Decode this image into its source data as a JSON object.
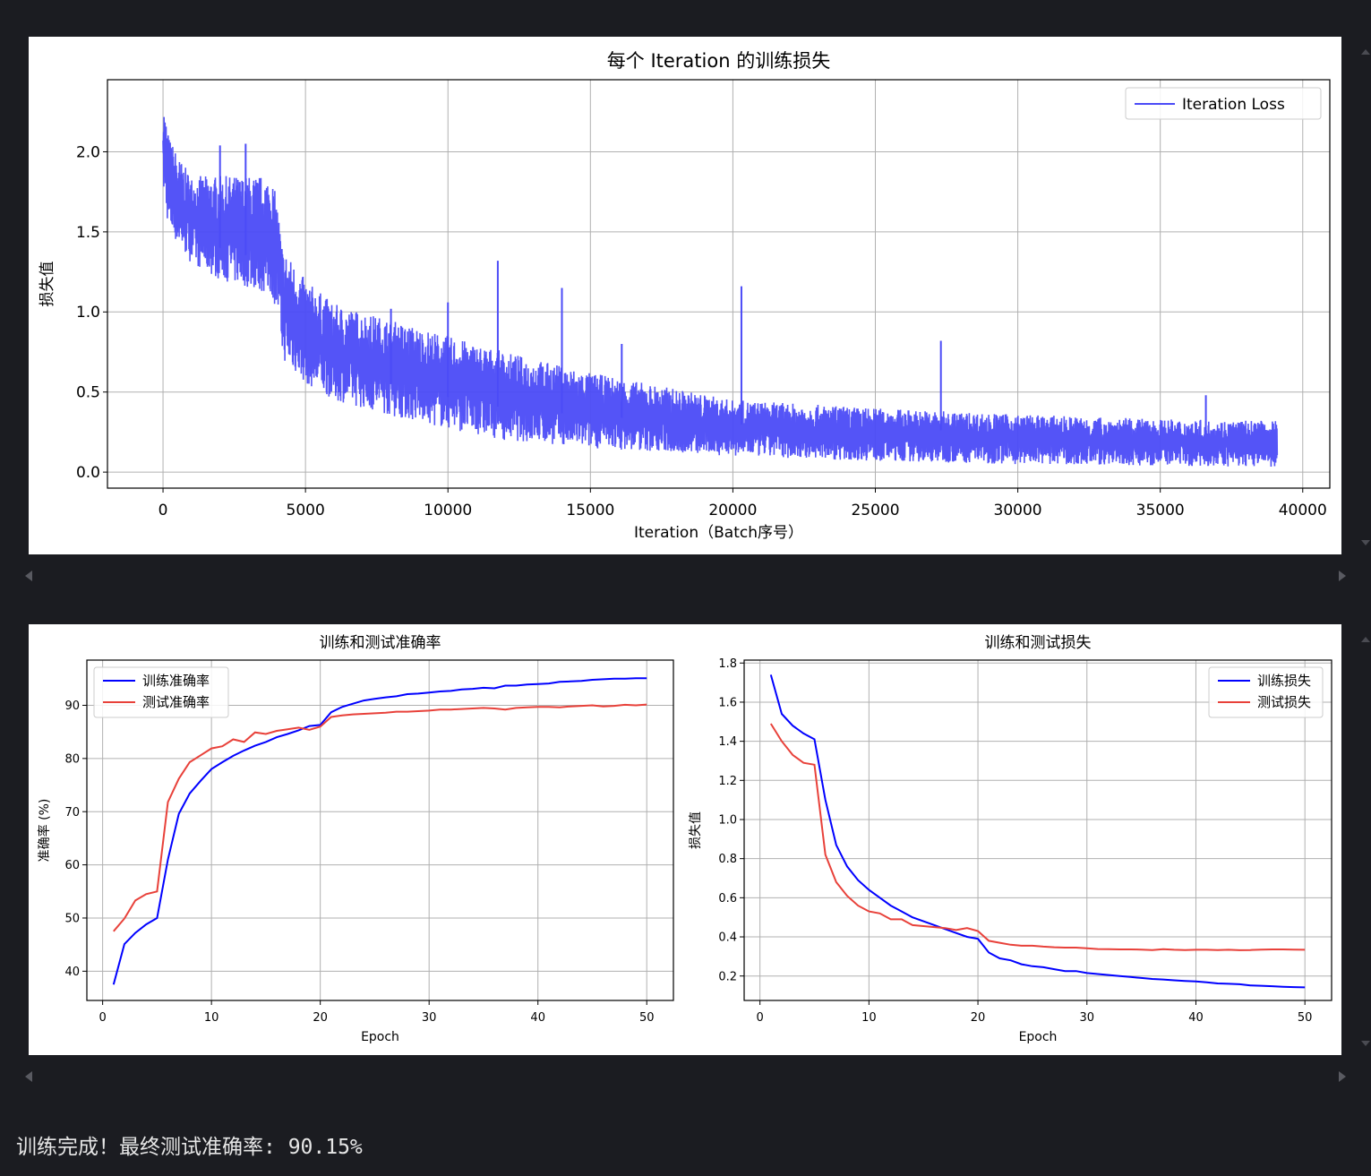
{
  "output": {
    "final_message": "训练完成！最终测试准确率: 90.15%"
  },
  "colors": {
    "background": "#1b1c21",
    "panel": "#ffffff",
    "blue": "#0000ff",
    "red": "#e8413a",
    "grid": "#b0b0b0",
    "iteration_line": "#4b4bf7"
  },
  "icons": [
    "scroll-left-arrow-icon",
    "scroll-right-arrow-icon"
  ],
  "chart_data": [
    {
      "type": "line",
      "title": "每个 Iteration 的训练损失",
      "xlabel": "Iteration（Batch序号）",
      "ylabel": "损失值",
      "xlim": [
        -1950,
        40950
      ],
      "ylim": [
        -0.1,
        2.45
      ],
      "xticks": [
        0,
        5000,
        10000,
        15000,
        20000,
        25000,
        30000,
        35000,
        40000
      ],
      "yticks": [
        0.0,
        0.5,
        1.0,
        1.5,
        2.0
      ],
      "ytick_labels": [
        "0.0",
        "0.5",
        "1.0",
        "1.5",
        "2.0"
      ],
      "grid": true,
      "legend": "upper right",
      "series": [
        {
          "name": "Iteration Loss",
          "n_points": 39100,
          "envelope_x": [
            0,
            200,
            600,
            1000,
            2000,
            3000,
            3800,
            4000,
            4200,
            5000,
            6000,
            8000,
            10000,
            12000,
            15000,
            18000,
            20000,
            25000,
            30000,
            35000,
            39100
          ],
          "envelope_upper": [
            2.33,
            2.1,
            1.95,
            1.85,
            1.85,
            1.85,
            1.85,
            1.7,
            1.4,
            1.2,
            1.05,
            0.95,
            0.85,
            0.75,
            0.62,
            0.52,
            0.45,
            0.4,
            0.36,
            0.33,
            0.32
          ],
          "envelope_lower": [
            1.75,
            1.5,
            1.4,
            1.3,
            1.2,
            1.15,
            1.1,
            1.0,
            0.7,
            0.55,
            0.45,
            0.35,
            0.27,
            0.2,
            0.15,
            0.12,
            0.1,
            0.07,
            0.05,
            0.04,
            0.03
          ],
          "spikes": [
            [
              11750,
              1.32
            ],
            [
              14000,
              1.15
            ],
            [
              20300,
              1.16
            ],
            [
              27300,
              0.82
            ],
            [
              10000,
              1.06
            ],
            [
              8000,
              1.02
            ],
            [
              2000,
              2.04
            ],
            [
              2900,
              2.05
            ],
            [
              36600,
              0.48
            ],
            [
              16100,
              0.8
            ]
          ]
        }
      ]
    },
    {
      "type": "line",
      "title": "训练和测试准确率",
      "xlabel": "Epoch",
      "ylabel": "准确率 (%)",
      "xlim": [
        -1.45,
        52.45
      ],
      "ylim": [
        34.5,
        98.5
      ],
      "xticks": [
        0,
        10,
        20,
        30,
        40,
        50
      ],
      "yticks": [
        40,
        50,
        60,
        70,
        80,
        90
      ],
      "grid": true,
      "legend": "upper left",
      "x": [
        1,
        2,
        3,
        4,
        5,
        6,
        7,
        8,
        9,
        10,
        11,
        12,
        13,
        14,
        15,
        16,
        17,
        18,
        19,
        20,
        21,
        22,
        23,
        24,
        25,
        26,
        27,
        28,
        29,
        30,
        31,
        32,
        33,
        34,
        35,
        36,
        37,
        38,
        39,
        40,
        41,
        42,
        43,
        44,
        45,
        46,
        47,
        48,
        49,
        50
      ],
      "series": [
        {
          "name": "训练准确率",
          "values": [
            37.5,
            45.1,
            47.2,
            48.8,
            50.0,
            61.0,
            69.6,
            73.4,
            75.8,
            78.0,
            79.3,
            80.5,
            81.5,
            82.4,
            83.1,
            84.0,
            84.6,
            85.3,
            86.1,
            86.3,
            88.7,
            89.7,
            90.3,
            90.9,
            91.2,
            91.5,
            91.7,
            92.1,
            92.2,
            92.4,
            92.6,
            92.7,
            93.0,
            93.1,
            93.3,
            93.2,
            93.7,
            93.7,
            93.9,
            94.0,
            94.1,
            94.4,
            94.5,
            94.6,
            94.8,
            94.9,
            95.0,
            95.0,
            95.1,
            95.1
          ]
        },
        {
          "name": "测试准确率",
          "values": [
            47.5,
            49.9,
            53.3,
            54.5,
            55.0,
            71.8,
            76.2,
            79.3,
            80.6,
            81.9,
            82.3,
            83.6,
            83.1,
            84.9,
            84.6,
            85.2,
            85.5,
            85.8,
            85.4,
            86.0,
            87.8,
            88.1,
            88.3,
            88.4,
            88.5,
            88.6,
            88.8,
            88.8,
            88.9,
            89.0,
            89.2,
            89.2,
            89.3,
            89.4,
            89.5,
            89.4,
            89.2,
            89.5,
            89.6,
            89.7,
            89.7,
            89.6,
            89.8,
            89.9,
            90.0,
            89.8,
            89.9,
            90.1,
            90.0,
            90.15
          ]
        }
      ]
    },
    {
      "type": "line",
      "title": "训练和测试损失",
      "xlabel": "Epoch",
      "ylabel": "损失值",
      "xlim": [
        -1.45,
        52.45
      ],
      "ylim": [
        0.075,
        1.815
      ],
      "xticks": [
        0,
        10,
        20,
        30,
        40,
        50
      ],
      "yticks": [
        0.2,
        0.4,
        0.6,
        0.8,
        1.0,
        1.2,
        1.4,
        1.6,
        1.8
      ],
      "ytick_labels": [
        "0.2",
        "0.4",
        "0.6",
        "0.8",
        "1.0",
        "1.2",
        "1.4",
        "1.6",
        "1.8"
      ],
      "grid": true,
      "legend": "upper right",
      "x": [
        1,
        2,
        3,
        4,
        5,
        6,
        7,
        8,
        9,
        10,
        11,
        12,
        13,
        14,
        15,
        16,
        17,
        18,
        19,
        20,
        21,
        22,
        23,
        24,
        25,
        26,
        27,
        28,
        29,
        30,
        31,
        32,
        33,
        34,
        35,
        36,
        37,
        38,
        39,
        40,
        41,
        42,
        43,
        44,
        45,
        46,
        47,
        48,
        49,
        50
      ],
      "series": [
        {
          "name": "训练损失",
          "values": [
            1.74,
            1.54,
            1.48,
            1.44,
            1.41,
            1.1,
            0.87,
            0.76,
            0.69,
            0.64,
            0.6,
            0.56,
            0.53,
            0.5,
            0.48,
            0.46,
            0.44,
            0.42,
            0.4,
            0.39,
            0.32,
            0.29,
            0.28,
            0.26,
            0.25,
            0.245,
            0.235,
            0.225,
            0.225,
            0.215,
            0.21,
            0.205,
            0.2,
            0.195,
            0.19,
            0.185,
            0.182,
            0.178,
            0.175,
            0.172,
            0.168,
            0.162,
            0.16,
            0.158,
            0.152,
            0.15,
            0.148,
            0.145,
            0.143,
            0.142
          ]
        },
        {
          "name": "测试损失",
          "values": [
            1.49,
            1.4,
            1.33,
            1.29,
            1.28,
            0.82,
            0.68,
            0.61,
            0.56,
            0.53,
            0.52,
            0.49,
            0.49,
            0.46,
            0.455,
            0.45,
            0.445,
            0.435,
            0.445,
            0.43,
            0.38,
            0.37,
            0.36,
            0.355,
            0.355,
            0.35,
            0.347,
            0.345,
            0.345,
            0.342,
            0.338,
            0.337,
            0.336,
            0.336,
            0.335,
            0.333,
            0.337,
            0.334,
            0.333,
            0.334,
            0.334,
            0.333,
            0.334,
            0.332,
            0.333,
            0.335,
            0.336,
            0.336,
            0.335,
            0.334
          ]
        }
      ]
    }
  ]
}
